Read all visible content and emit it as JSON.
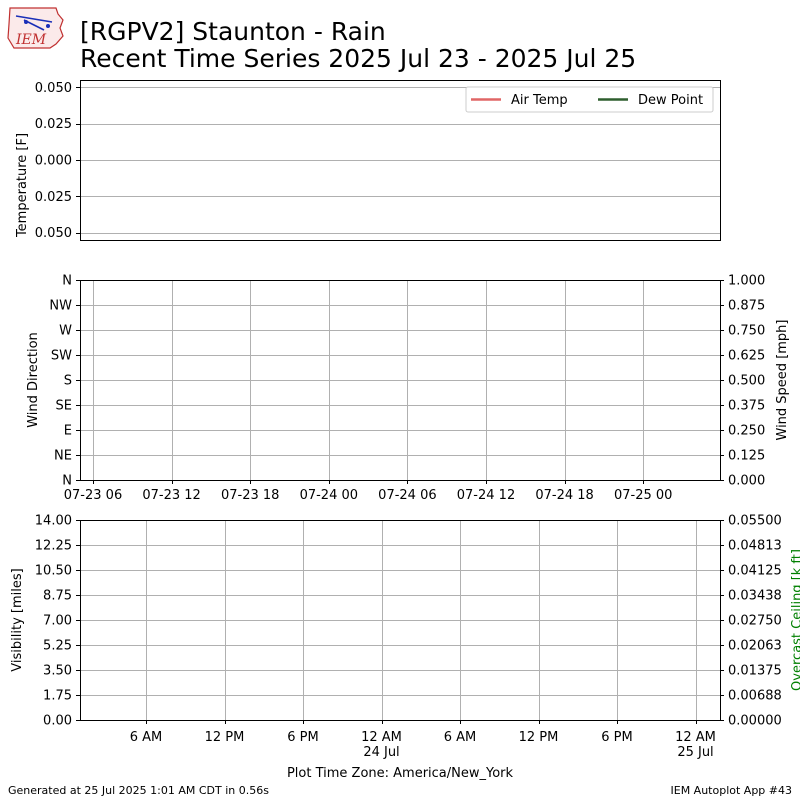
{
  "title": {
    "line1": "[RGPV2] Staunton - Rain",
    "line2": "Recent Time Series 2025 Jul 23 - 2025 Jul 25"
  },
  "logo": {
    "text": "IEM"
  },
  "colors": {
    "air_temp": "#e06666",
    "dew_point": "#2e5e2e",
    "ceiling_label": "#008000",
    "grid": "#b0b0b0"
  },
  "footer": {
    "left": "Generated at 25 Jul 2025 1:01 AM CDT in 0.56s",
    "right": "IEM Autoplot App #43"
  },
  "chart_data": [
    {
      "type": "line",
      "ylabel": "Temperature [F]",
      "yticks": [
        "0.050",
        "0.025",
        "0.000",
        "0.025",
        "0.050"
      ],
      "ylim": [
        -0.055,
        0.055
      ],
      "series": [
        {
          "name": "Air Temp",
          "values": []
        },
        {
          "name": "Dew Point",
          "values": []
        }
      ],
      "legend": "top-right",
      "grid": "y"
    },
    {
      "type": "scatter",
      "ylabel_left": "Wind Direction",
      "ylabel_right": "Wind Speed [mph]",
      "yticks_left": [
        "N",
        "NW",
        "W",
        "SW",
        "S",
        "SE",
        "E",
        "NE",
        "N"
      ],
      "yticks_right": [
        "1.000",
        "0.875",
        "0.750",
        "0.625",
        "0.500",
        "0.375",
        "0.250",
        "0.125",
        "0.000"
      ],
      "ylim_right": [
        0,
        1
      ],
      "xticks": [
        "07-23 06",
        "07-23 12",
        "07-23 18",
        "07-24 00",
        "07-24 06",
        "07-24 12",
        "07-24 18",
        "07-25 00"
      ],
      "series": [],
      "grid": "both"
    },
    {
      "type": "line",
      "ylabel_left": "Visibility [miles]",
      "ylabel_right": "Overcast Ceiling [k ft]",
      "yticks_left": [
        "14.00",
        "12.25",
        "10.50",
        "8.75",
        "7.00",
        "5.25",
        "3.50",
        "1.75",
        "0.00"
      ],
      "ylim_left": [
        0,
        14
      ],
      "yticks_right": [
        "0.05500",
        "0.04813",
        "0.04125",
        "0.03438",
        "0.02750",
        "0.02063",
        "0.01375",
        "0.00688",
        "0.00000"
      ],
      "ylim_right": [
        0,
        0.055
      ],
      "xticks": [
        {
          "label": "6 AM",
          "sub": ""
        },
        {
          "label": "12 PM",
          "sub": ""
        },
        {
          "label": "6 PM",
          "sub": ""
        },
        {
          "label": "12 AM",
          "sub": "24 Jul"
        },
        {
          "label": "6 AM",
          "sub": ""
        },
        {
          "label": "12 PM",
          "sub": ""
        },
        {
          "label": "6 PM",
          "sub": ""
        },
        {
          "label": "12 AM",
          "sub": "25 Jul"
        }
      ],
      "xlabel": "Plot Time Zone: America/New_York",
      "series": [],
      "grid": "both"
    }
  ]
}
